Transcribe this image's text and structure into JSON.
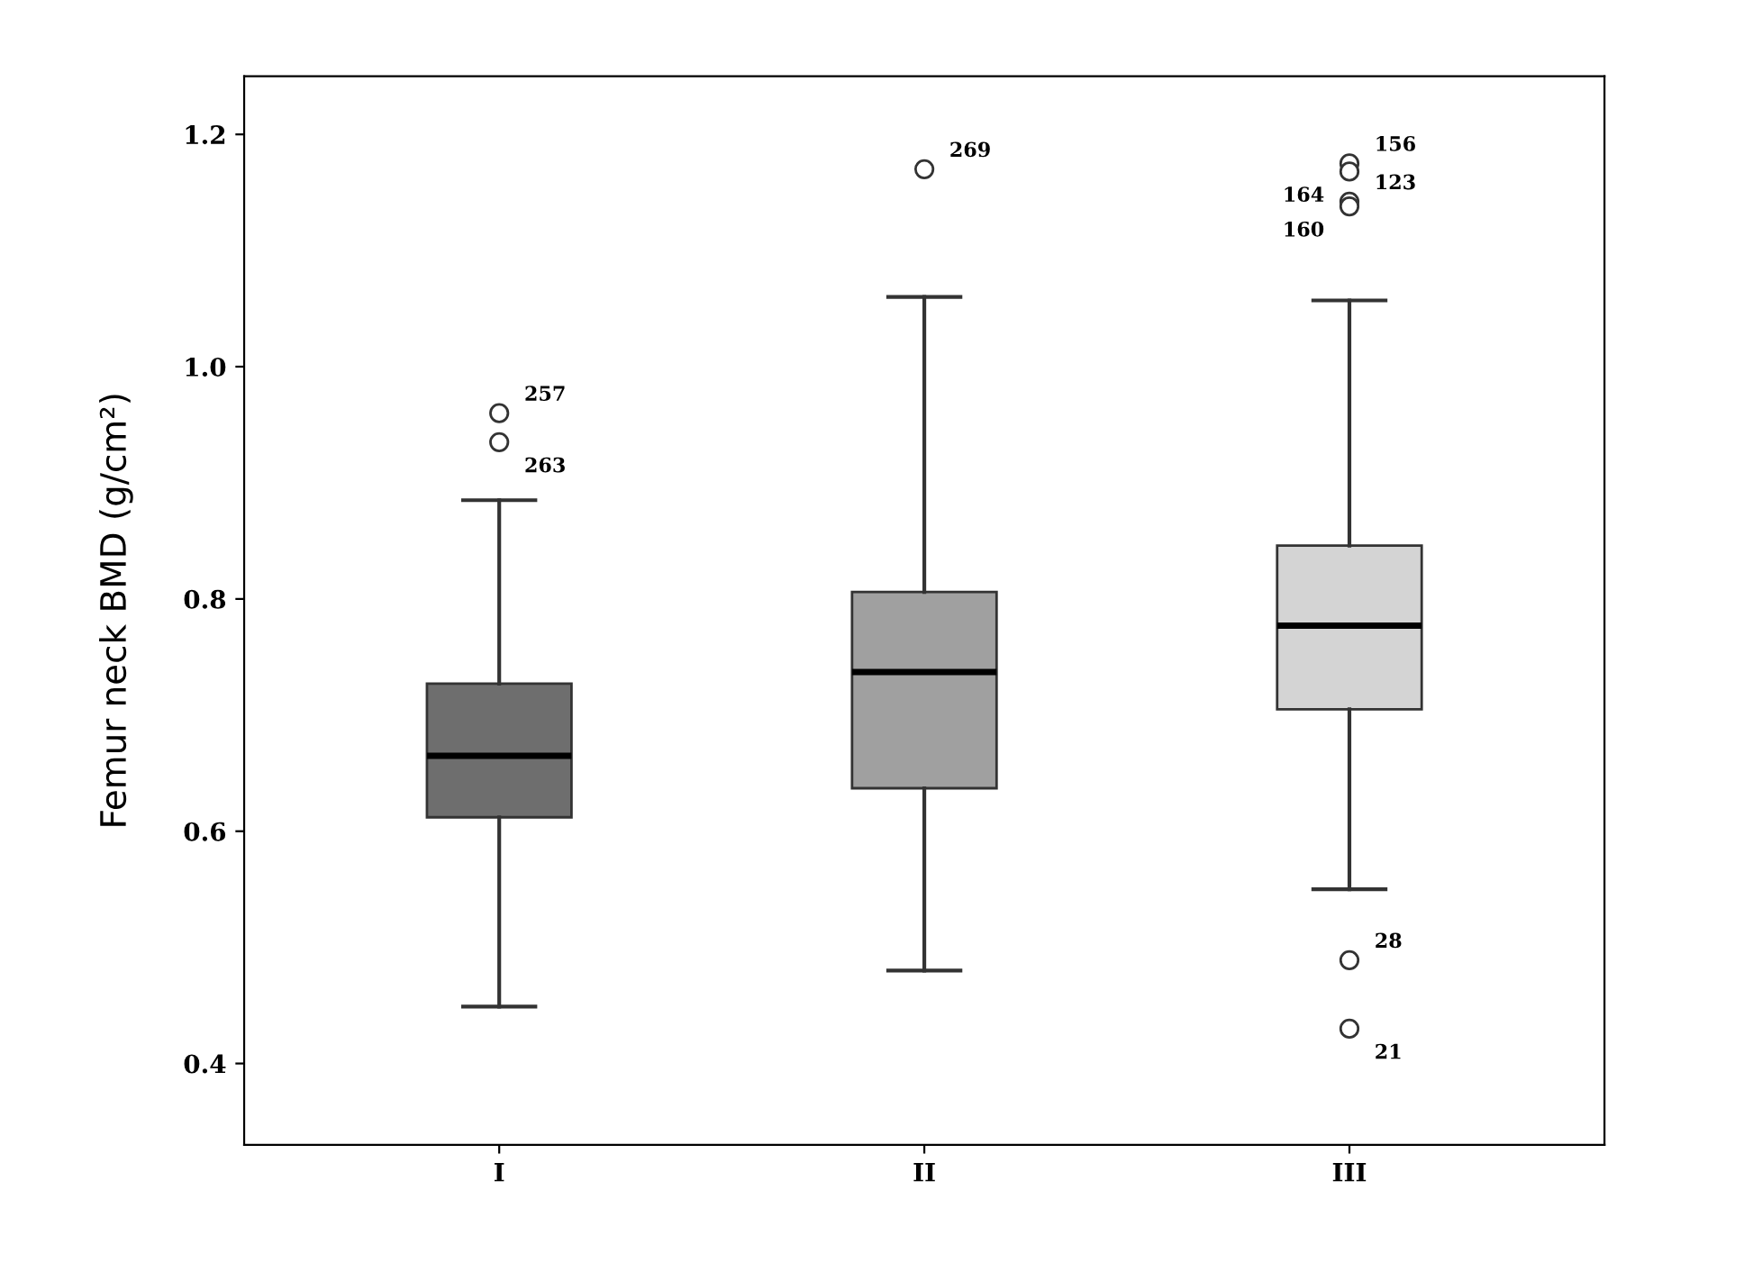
{
  "chart_data": {
    "type": "box",
    "ylabel": "Femur neck BMD (g/cm²)",
    "categories": [
      "I",
      "II",
      "III"
    ],
    "colors": [
      "#6e6e6e",
      "#a0a0a0",
      "#d4d4d4"
    ],
    "boxes": [
      {
        "low": 0.449,
        "q1": 0.612,
        "median": 0.665,
        "q3": 0.727,
        "high": 0.885,
        "outliers": [
          0.96,
          0.935
        ]
      },
      {
        "low": 0.48,
        "q1": 0.637,
        "median": 0.737,
        "q3": 0.806,
        "high": 1.06,
        "outliers": [
          1.17
        ]
      },
      {
        "low": 0.55,
        "q1": 0.705,
        "median": 0.777,
        "q3": 0.846,
        "high": 1.057,
        "outliers": [
          1.175,
          1.168,
          1.142,
          1.138,
          0.489,
          0.43
        ]
      }
    ],
    "annotations": [
      "257",
      "263",
      "269",
      "156",
      "164",
      "123",
      "160",
      "28",
      "21"
    ],
    "ylim": [
      0.33,
      1.25
    ],
    "yticks": [
      0.4,
      0.6,
      0.8,
      {
        "value": 1.0,
        "label": "1.0"
      },
      1.2
    ],
    "grid": false
  }
}
